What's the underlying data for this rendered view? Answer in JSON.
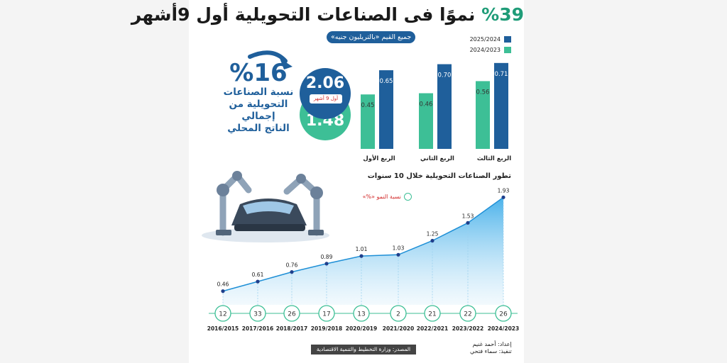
{
  "header": {
    "title_pct": "%39",
    "title_text": "نموًا فى الصناعات التحويلية أول 9أشهر",
    "units_label": "جميع القيم «بالتريليون جنيه»"
  },
  "legend": {
    "items": [
      {
        "label": "2025/2024",
        "color": "#1f5f9b"
      },
      {
        "label": "2024/2023",
        "color": "#3dbf96"
      }
    ]
  },
  "share_stat": {
    "value": "%16",
    "line1": "نسبة الصناعات",
    "line2": "التحويلية من إجمالي",
    "line3": "الناتج المحلي"
  },
  "nine_months": {
    "current": "2.06",
    "previous": "1.48",
    "tag": "أول 9 أشهر"
  },
  "chart_data": [
    {
      "type": "bar",
      "categories": [
        "الربع الأول",
        "الربع الثاني",
        "الربع الثالث"
      ],
      "series": [
        {
          "name": "2024/2023",
          "values": [
            0.45,
            0.46,
            0.56
          ],
          "color": "#3dbf96"
        },
        {
          "name": "2025/2024",
          "values": [
            0.65,
            0.7,
            0.71
          ],
          "color": "#1f5f9b"
        }
      ],
      "ylim": [
        0,
        0.75
      ]
    },
    {
      "type": "area",
      "title": "تطور الصناعات التحويلية خلال 10 سنوات",
      "x": [
        "2016/2015",
        "2017/2016",
        "2018/2017",
        "2019/2018",
        "2020/2019",
        "2021/2020",
        "2022/2021",
        "2023/2022",
        "2024/2023"
      ],
      "values": [
        0.46,
        0.61,
        0.76,
        0.89,
        1.01,
        1.03,
        1.25,
        1.53,
        1.93
      ],
      "growth": [
        12,
        33,
        26,
        17,
        13,
        2,
        21,
        22,
        26
      ],
      "growth_label": "نسبة النمو «%»",
      "ylim": [
        0,
        2.0
      ]
    }
  ],
  "footer": {
    "source": "المصدر: وزارة التخطيط والتنمية الاقتصادية",
    "prepared": "إعداد: أحمد غنيم",
    "design": "تنفيذ: سماء فتحي"
  }
}
